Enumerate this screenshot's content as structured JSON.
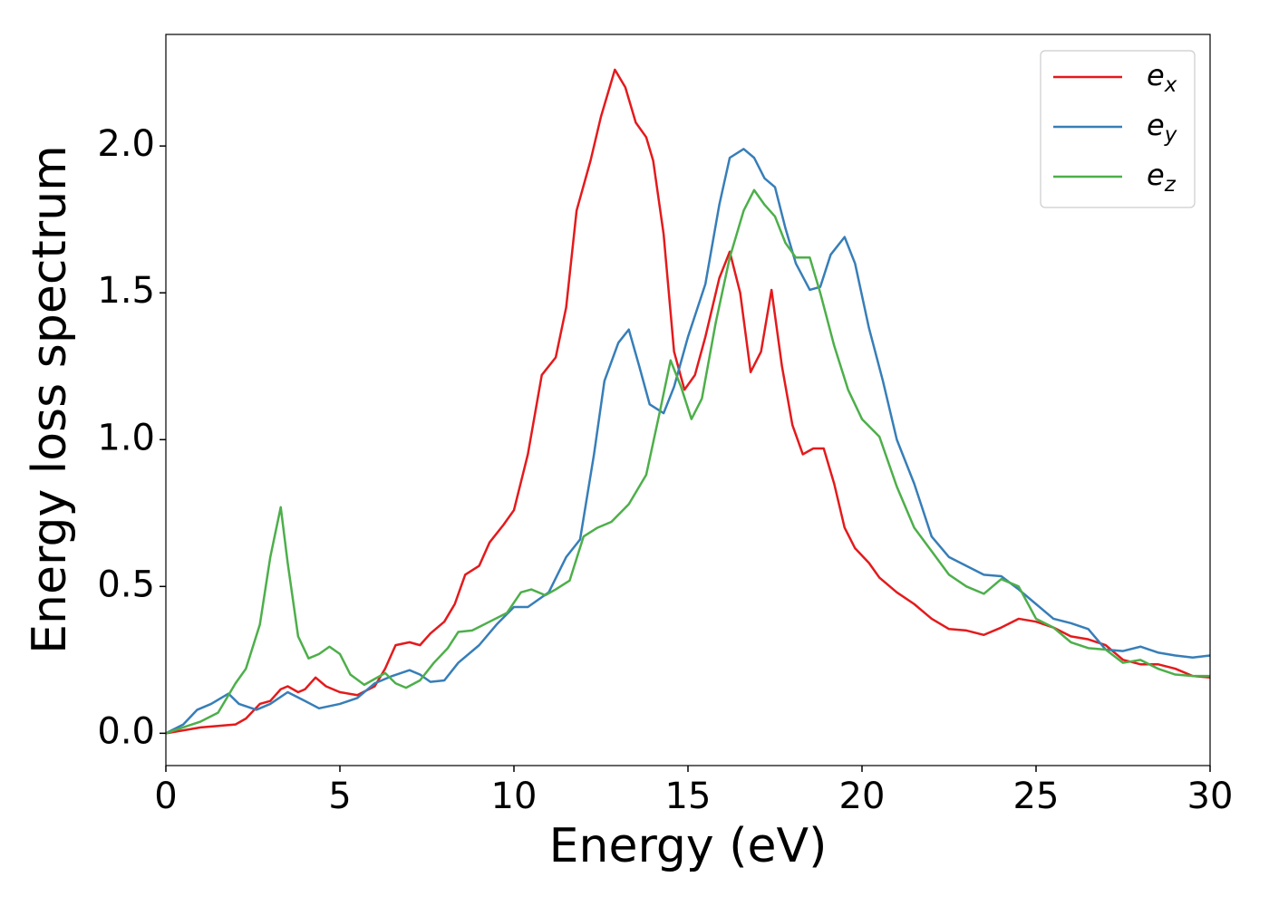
{
  "chart_data": {
    "type": "line",
    "xlabel": "Energy (eV)",
    "ylabel": "Energy loss spectrum",
    "xlim": [
      0,
      30
    ],
    "ylim": [
      -0.11,
      2.38
    ],
    "xticks": [
      0,
      5,
      10,
      15,
      20,
      25,
      30
    ],
    "yticks": [
      {
        "value": 0,
        "label": "0.0"
      },
      0.5,
      {
        "value": 1,
        "label": "1.0"
      },
      1.5,
      {
        "value": 2,
        "label": "2.0"
      }
    ],
    "legend": "upper right",
    "series": [
      {
        "name": "e_x",
        "color": "#e41a1c",
        "x": [
          0,
          0.5,
          1,
          1.5,
          2,
          2.3,
          2.7,
          3,
          3.3,
          3.5,
          3.8,
          4,
          4.3,
          4.6,
          5,
          5.5,
          6,
          6.3,
          6.6,
          7,
          7.3,
          7.6,
          8,
          8.3,
          8.6,
          9,
          9.3,
          9.7,
          10,
          10.4,
          10.8,
          11.2,
          11.5,
          11.8,
          12.2,
          12.5,
          12.9,
          13.2,
          13.5,
          13.8,
          14,
          14.3,
          14.6,
          14.9,
          15.2,
          15.5,
          15.9,
          16.2,
          16.5,
          16.8,
          17.1,
          17.4,
          17.7,
          18,
          18.3,
          18.6,
          18.9,
          19.2,
          19.5,
          19.8,
          20.2,
          20.5,
          21,
          21.5,
          22,
          22.5,
          23,
          23.5,
          24,
          24.5,
          25,
          25.5,
          26,
          26.5,
          27,
          27.5,
          28,
          28.5,
          29,
          29.5,
          30
        ],
        "values": [
          0,
          0.01,
          0.02,
          0.025,
          0.03,
          0.05,
          0.1,
          0.11,
          0.15,
          0.16,
          0.14,
          0.15,
          0.19,
          0.16,
          0.14,
          0.13,
          0.16,
          0.22,
          0.3,
          0.31,
          0.3,
          0.34,
          0.38,
          0.44,
          0.54,
          0.57,
          0.65,
          0.71,
          0.76,
          0.95,
          1.22,
          1.28,
          1.45,
          1.78,
          1.95,
          2.1,
          2.26,
          2.2,
          2.08,
          2.03,
          1.95,
          1.7,
          1.3,
          1.17,
          1.22,
          1.35,
          1.55,
          1.64,
          1.5,
          1.23,
          1.3,
          1.51,
          1.25,
          1.05,
          0.95,
          0.97,
          0.97,
          0.85,
          0.7,
          0.63,
          0.58,
          0.53,
          0.48,
          0.44,
          0.39,
          0.355,
          0.35,
          0.335,
          0.36,
          0.39,
          0.38,
          0.36,
          0.33,
          0.32,
          0.3,
          0.25,
          0.235,
          0.235,
          0.22,
          0.195,
          0.19
        ]
      },
      {
        "name": "e_y",
        "color": "#377eb8",
        "x": [
          0,
          0.5,
          0.9,
          1.3,
          1.8,
          2.1,
          2.6,
          3,
          3.5,
          4,
          4.4,
          5,
          5.5,
          6,
          6.5,
          7,
          7.3,
          7.6,
          8,
          8.4,
          9,
          9.5,
          10,
          10.4,
          11,
          11.5,
          11.9,
          12.3,
          12.6,
          13,
          13.3,
          13.6,
          13.9,
          14.3,
          14.6,
          15,
          15.5,
          15.9,
          16.2,
          16.6,
          16.9,
          17.2,
          17.5,
          17.8,
          18.1,
          18.5,
          18.8,
          19.1,
          19.5,
          19.8,
          20.2,
          20.6,
          21,
          21.5,
          22,
          22.5,
          23,
          23.5,
          24,
          24.5,
          25,
          25.5,
          26,
          26.5,
          27,
          27.5,
          28,
          28.5,
          29,
          29.5,
          30
        ],
        "values": [
          0,
          0.03,
          0.08,
          0.1,
          0.135,
          0.1,
          0.08,
          0.1,
          0.14,
          0.11,
          0.085,
          0.1,
          0.12,
          0.17,
          0.195,
          0.215,
          0.2,
          0.175,
          0.18,
          0.24,
          0.3,
          0.37,
          0.43,
          0.43,
          0.48,
          0.6,
          0.66,
          0.95,
          1.2,
          1.33,
          1.375,
          1.25,
          1.12,
          1.09,
          1.18,
          1.35,
          1.53,
          1.8,
          1.96,
          1.99,
          1.96,
          1.89,
          1.86,
          1.72,
          1.6,
          1.51,
          1.52,
          1.63,
          1.69,
          1.6,
          1.38,
          1.2,
          1.0,
          0.85,
          0.67,
          0.6,
          0.57,
          0.54,
          0.535,
          0.49,
          0.44,
          0.39,
          0.375,
          0.355,
          0.285,
          0.28,
          0.295,
          0.275,
          0.265,
          0.258,
          0.265
        ]
      },
      {
        "name": "e_z",
        "color": "#4daf4a",
        "x": [
          0,
          0.5,
          1,
          1.5,
          2,
          2.3,
          2.7,
          3,
          3.3,
          3.5,
          3.8,
          4.1,
          4.4,
          4.7,
          5,
          5.3,
          5.7,
          6,
          6.3,
          6.6,
          6.9,
          7.3,
          7.7,
          8.1,
          8.4,
          8.8,
          9.3,
          9.8,
          10.2,
          10.5,
          10.9,
          11.2,
          11.6,
          12,
          12.4,
          12.8,
          13.3,
          13.8,
          14.2,
          14.5,
          14.8,
          15.1,
          15.4,
          15.8,
          16.2,
          16.6,
          16.9,
          17.2,
          17.5,
          17.8,
          18.1,
          18.5,
          18.8,
          19.2,
          19.6,
          20,
          20.5,
          21,
          21.5,
          22,
          22.5,
          23,
          23.5,
          24,
          24.5,
          25,
          25.5,
          26,
          26.5,
          27,
          27.5,
          28,
          28.5,
          29,
          29.5,
          30
        ],
        "values": [
          0,
          0.02,
          0.04,
          0.07,
          0.17,
          0.22,
          0.37,
          0.6,
          0.77,
          0.58,
          0.33,
          0.255,
          0.27,
          0.295,
          0.27,
          0.2,
          0.165,
          0.185,
          0.205,
          0.17,
          0.155,
          0.18,
          0.24,
          0.29,
          0.345,
          0.35,
          0.38,
          0.41,
          0.48,
          0.49,
          0.47,
          0.49,
          0.52,
          0.67,
          0.7,
          0.72,
          0.78,
          0.88,
          1.1,
          1.27,
          1.18,
          1.07,
          1.14,
          1.4,
          1.62,
          1.78,
          1.85,
          1.8,
          1.76,
          1.67,
          1.62,
          1.62,
          1.5,
          1.32,
          1.17,
          1.07,
          1.01,
          0.84,
          0.7,
          0.62,
          0.54,
          0.5,
          0.475,
          0.525,
          0.5,
          0.39,
          0.36,
          0.31,
          0.29,
          0.285,
          0.24,
          0.25,
          0.22,
          0.2,
          0.195,
          0.195
        ]
      }
    ]
  }
}
